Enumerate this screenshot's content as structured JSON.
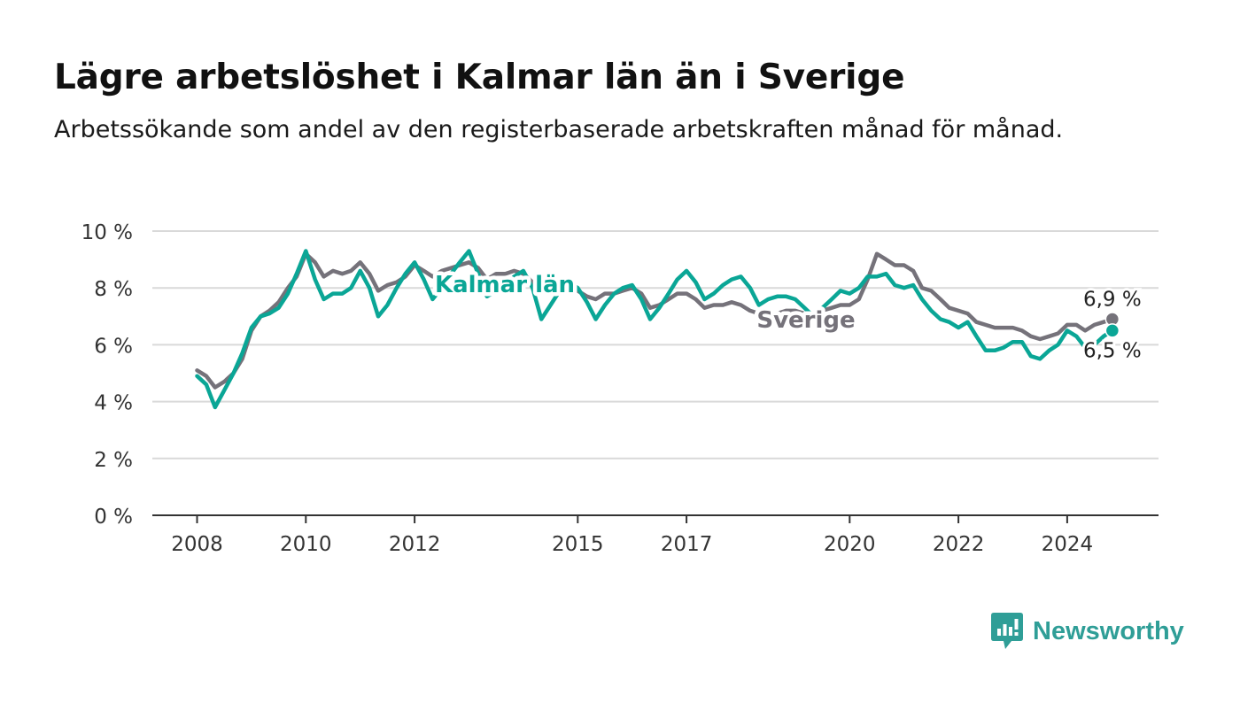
{
  "header": {
    "title": "Lägre arbetslöshet i Kalmar län än i Sverige",
    "subtitle": "Arbetssökande som andel av den registerbaserade arbetskraften månad för månad."
  },
  "brand": {
    "name": "Newsworthy",
    "icon": "newsworthy-logo-icon",
    "color": "#2f9e97"
  },
  "chart_data": {
    "type": "line",
    "ylim": [
      0,
      10
    ],
    "y_ticks": [
      0,
      2,
      4,
      6,
      8,
      10
    ],
    "y_tick_labels": [
      "0 %",
      "2 %",
      "4 %",
      "6 %",
      "8 %",
      "10 %"
    ],
    "x_ticks": [
      2008,
      2010,
      2012,
      2015,
      2017,
      2020,
      2022,
      2024
    ],
    "x_tick_labels": [
      "2008",
      "2010",
      "2012",
      "2015",
      "2017",
      "2020",
      "2022",
      "2024"
    ],
    "grid": true,
    "series": [
      {
        "name": "Sverige",
        "color": "#75727a",
        "end_label": "6,9 %",
        "points": [
          [
            2008.0,
            5.1
          ],
          [
            2008.17,
            4.9
          ],
          [
            2008.33,
            4.5
          ],
          [
            2008.5,
            4.7
          ],
          [
            2008.67,
            5.0
          ],
          [
            2008.83,
            5.5
          ],
          [
            2009.0,
            6.5
          ],
          [
            2009.17,
            7.0
          ],
          [
            2009.33,
            7.2
          ],
          [
            2009.5,
            7.5
          ],
          [
            2009.67,
            8.0
          ],
          [
            2009.83,
            8.4
          ],
          [
            2010.0,
            9.2
          ],
          [
            2010.17,
            8.9
          ],
          [
            2010.33,
            8.4
          ],
          [
            2010.5,
            8.6
          ],
          [
            2010.67,
            8.5
          ],
          [
            2010.83,
            8.6
          ],
          [
            2011.0,
            8.9
          ],
          [
            2011.17,
            8.5
          ],
          [
            2011.33,
            7.9
          ],
          [
            2011.5,
            8.1
          ],
          [
            2011.67,
            8.2
          ],
          [
            2011.83,
            8.4
          ],
          [
            2012.0,
            8.8
          ],
          [
            2012.17,
            8.6
          ],
          [
            2012.33,
            8.4
          ],
          [
            2012.5,
            8.6
          ],
          [
            2012.67,
            8.7
          ],
          [
            2012.83,
            8.8
          ],
          [
            2013.0,
            8.9
          ],
          [
            2013.17,
            8.7
          ],
          [
            2013.33,
            8.3
          ],
          [
            2013.5,
            8.5
          ],
          [
            2013.67,
            8.5
          ],
          [
            2013.83,
            8.6
          ],
          [
            2014.0,
            8.5
          ],
          [
            2014.17,
            8.2
          ],
          [
            2014.33,
            7.9
          ],
          [
            2014.5,
            7.8
          ],
          [
            2014.67,
            7.9
          ],
          [
            2014.83,
            8.0
          ],
          [
            2015.0,
            7.9
          ],
          [
            2015.17,
            7.7
          ],
          [
            2015.33,
            7.6
          ],
          [
            2015.5,
            7.8
          ],
          [
            2015.67,
            7.8
          ],
          [
            2015.83,
            7.9
          ],
          [
            2016.0,
            8.0
          ],
          [
            2016.17,
            7.8
          ],
          [
            2016.33,
            7.3
          ],
          [
            2016.5,
            7.4
          ],
          [
            2016.67,
            7.6
          ],
          [
            2016.83,
            7.8
          ],
          [
            2017.0,
            7.8
          ],
          [
            2017.17,
            7.6
          ],
          [
            2017.33,
            7.3
          ],
          [
            2017.5,
            7.4
          ],
          [
            2017.67,
            7.4
          ],
          [
            2017.83,
            7.5
          ],
          [
            2018.0,
            7.4
          ],
          [
            2018.17,
            7.2
          ],
          [
            2018.33,
            7.1
          ],
          [
            2018.5,
            7.1
          ],
          [
            2018.67,
            7.1
          ],
          [
            2018.83,
            7.2
          ],
          [
            2019.0,
            7.2
          ],
          [
            2019.17,
            7.1
          ],
          [
            2019.33,
            7.0
          ],
          [
            2019.5,
            7.2
          ],
          [
            2019.67,
            7.3
          ],
          [
            2019.83,
            7.4
          ],
          [
            2020.0,
            7.4
          ],
          [
            2020.17,
            7.6
          ],
          [
            2020.33,
            8.3
          ],
          [
            2020.5,
            9.2
          ],
          [
            2020.67,
            9.0
          ],
          [
            2020.83,
            8.8
          ],
          [
            2021.0,
            8.8
          ],
          [
            2021.17,
            8.6
          ],
          [
            2021.33,
            8.0
          ],
          [
            2021.5,
            7.9
          ],
          [
            2021.67,
            7.6
          ],
          [
            2021.83,
            7.3
          ],
          [
            2022.0,
            7.2
          ],
          [
            2022.17,
            7.1
          ],
          [
            2022.33,
            6.8
          ],
          [
            2022.5,
            6.7
          ],
          [
            2022.67,
            6.6
          ],
          [
            2022.83,
            6.6
          ],
          [
            2023.0,
            6.6
          ],
          [
            2023.17,
            6.5
          ],
          [
            2023.33,
            6.3
          ],
          [
            2023.5,
            6.2
          ],
          [
            2023.67,
            6.3
          ],
          [
            2023.83,
            6.4
          ],
          [
            2024.0,
            6.7
          ],
          [
            2024.17,
            6.7
          ],
          [
            2024.33,
            6.5
          ],
          [
            2024.5,
            6.7
          ],
          [
            2024.67,
            6.8
          ],
          [
            2024.83,
            6.9
          ]
        ]
      },
      {
        "name": "Kalmar län",
        "color": "#0aa696",
        "end_label": "6,5 %",
        "points": [
          [
            2008.0,
            4.9
          ],
          [
            2008.17,
            4.6
          ],
          [
            2008.33,
            3.8
          ],
          [
            2008.5,
            4.4
          ],
          [
            2008.67,
            5.0
          ],
          [
            2008.83,
            5.7
          ],
          [
            2009.0,
            6.6
          ],
          [
            2009.17,
            7.0
          ],
          [
            2009.33,
            7.1
          ],
          [
            2009.5,
            7.3
          ],
          [
            2009.67,
            7.8
          ],
          [
            2009.83,
            8.5
          ],
          [
            2010.0,
            9.3
          ],
          [
            2010.17,
            8.3
          ],
          [
            2010.33,
            7.6
          ],
          [
            2010.5,
            7.8
          ],
          [
            2010.67,
            7.8
          ],
          [
            2010.83,
            8.0
          ],
          [
            2011.0,
            8.6
          ],
          [
            2011.17,
            8.0
          ],
          [
            2011.33,
            7.0
          ],
          [
            2011.5,
            7.4
          ],
          [
            2011.67,
            8.0
          ],
          [
            2011.83,
            8.5
          ],
          [
            2012.0,
            8.9
          ],
          [
            2012.17,
            8.3
          ],
          [
            2012.33,
            7.6
          ],
          [
            2012.5,
            8.0
          ],
          [
            2012.67,
            8.5
          ],
          [
            2012.83,
            8.9
          ],
          [
            2013.0,
            9.3
          ],
          [
            2013.17,
            8.5
          ],
          [
            2013.33,
            7.7
          ],
          [
            2013.5,
            7.9
          ],
          [
            2013.67,
            8.1
          ],
          [
            2013.83,
            8.4
          ],
          [
            2014.0,
            8.6
          ],
          [
            2014.17,
            8.0
          ],
          [
            2014.33,
            6.9
          ],
          [
            2014.5,
            7.4
          ],
          [
            2014.67,
            7.9
          ],
          [
            2014.83,
            8.2
          ],
          [
            2015.0,
            8.0
          ],
          [
            2015.17,
            7.5
          ],
          [
            2015.33,
            6.9
          ],
          [
            2015.5,
            7.4
          ],
          [
            2015.67,
            7.8
          ],
          [
            2015.83,
            8.0
          ],
          [
            2016.0,
            8.1
          ],
          [
            2016.17,
            7.6
          ],
          [
            2016.33,
            6.9
          ],
          [
            2016.5,
            7.3
          ],
          [
            2016.67,
            7.8
          ],
          [
            2016.83,
            8.3
          ],
          [
            2017.0,
            8.6
          ],
          [
            2017.17,
            8.2
          ],
          [
            2017.33,
            7.6
          ],
          [
            2017.5,
            7.8
          ],
          [
            2017.67,
            8.1
          ],
          [
            2017.83,
            8.3
          ],
          [
            2018.0,
            8.4
          ],
          [
            2018.17,
            8.0
          ],
          [
            2018.33,
            7.4
          ],
          [
            2018.5,
            7.6
          ],
          [
            2018.67,
            7.7
          ],
          [
            2018.83,
            7.7
          ],
          [
            2019.0,
            7.6
          ],
          [
            2019.17,
            7.3
          ],
          [
            2019.33,
            7.0
          ],
          [
            2019.5,
            7.3
          ],
          [
            2019.67,
            7.6
          ],
          [
            2019.83,
            7.9
          ],
          [
            2020.0,
            7.8
          ],
          [
            2020.17,
            8.0
          ],
          [
            2020.33,
            8.4
          ],
          [
            2020.5,
            8.4
          ],
          [
            2020.67,
            8.5
          ],
          [
            2020.83,
            8.1
          ],
          [
            2021.0,
            8.0
          ],
          [
            2021.17,
            8.1
          ],
          [
            2021.33,
            7.6
          ],
          [
            2021.5,
            7.2
          ],
          [
            2021.67,
            6.9
          ],
          [
            2021.83,
            6.8
          ],
          [
            2022.0,
            6.6
          ],
          [
            2022.17,
            6.8
          ],
          [
            2022.33,
            6.3
          ],
          [
            2022.5,
            5.8
          ],
          [
            2022.67,
            5.8
          ],
          [
            2022.83,
            5.9
          ],
          [
            2023.0,
            6.1
          ],
          [
            2023.17,
            6.1
          ],
          [
            2023.33,
            5.6
          ],
          [
            2023.5,
            5.5
          ],
          [
            2023.67,
            5.8
          ],
          [
            2023.83,
            6.0
          ],
          [
            2024.0,
            6.5
          ],
          [
            2024.17,
            6.3
          ],
          [
            2024.33,
            5.9
          ],
          [
            2024.5,
            6.0
          ],
          [
            2024.67,
            6.3
          ],
          [
            2024.83,
            6.5
          ]
        ]
      }
    ]
  }
}
